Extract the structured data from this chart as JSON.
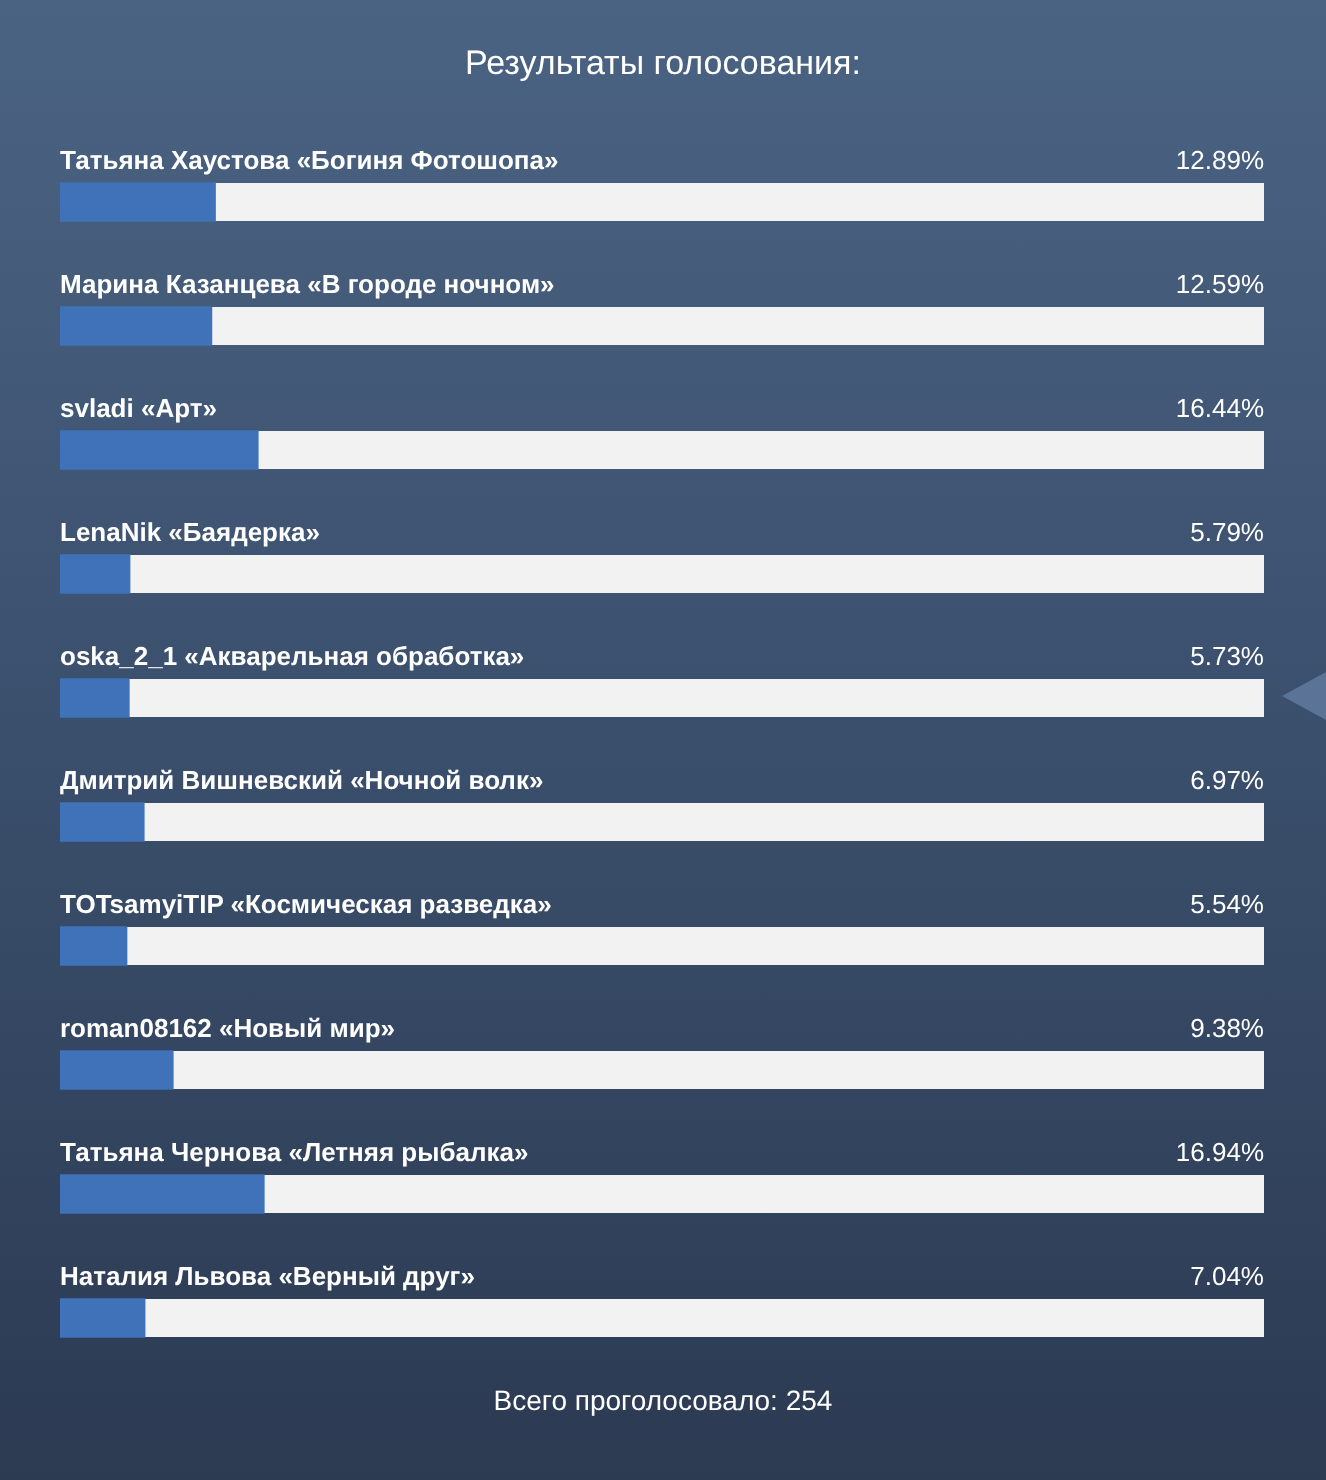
{
  "chart_data": {
    "type": "bar",
    "orientation": "horizontal",
    "title": "Результаты голосования:",
    "categories": [
      "Татьяна Хаустова «Богиня Фотошопа»",
      "Марина Казанцева «В городе ночном»",
      "svladi «Арт»",
      "LenaNik «Баядерка»",
      "oska_2_1 «Акварельная обработка»",
      "Дмитрий Вишневский «Ночной волк»",
      "TOTsamyiTIP «Космическая разведка»",
      "roman08162 «Новый мир»",
      "Татьяна Чернова «Летняя рыбалка»",
      "Наталия Львова «Верный друг»"
    ],
    "values": [
      12.89,
      12.59,
      16.44,
      5.79,
      5.73,
      6.97,
      5.54,
      9.38,
      16.94,
      7.04
    ],
    "value_labels": [
      "12.89%",
      "12.59%",
      "16.44%",
      "5.79%",
      "5.73%",
      "6.97%",
      "5.54%",
      "9.38%",
      "16.94%",
      "7.04%"
    ],
    "color": "#3f72b8",
    "bands": [
      {
        "axis": "x",
        "from": 0,
        "to": 100,
        "color": "#f2f2f2"
      }
    ],
    "tick_labels": false,
    "grid": false,
    "legend": false,
    "annotations": [
      "Всего проголосовало: 254"
    ]
  }
}
